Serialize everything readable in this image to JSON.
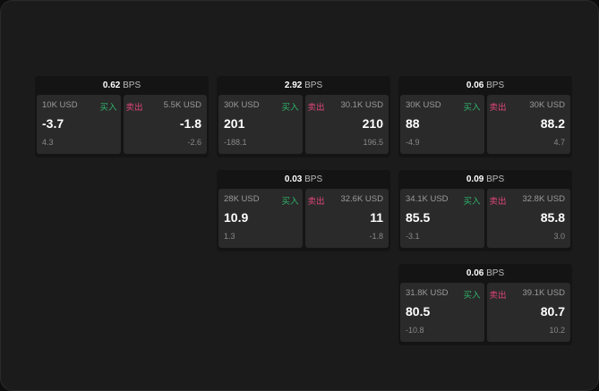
{
  "buy_label": "买入",
  "sell_label": "卖出",
  "unit": "BPS",
  "colors": {
    "buy": "#2fb36a",
    "sell": "#e0457b"
  },
  "cards": [
    {
      "spread": "0.62",
      "buy": {
        "size": "10K USD",
        "price": "-3.7",
        "change": "4.3"
      },
      "sell": {
        "size": "5.5K USD",
        "price": "-1.8",
        "change": "-2.6"
      }
    },
    {
      "spread": "2.92",
      "buy": {
        "size": "30K USD",
        "price": "201",
        "change": "-188.1"
      },
      "sell": {
        "size": "30.1K USD",
        "price": "210",
        "change": "196.5"
      }
    },
    {
      "spread": "0.06",
      "buy": {
        "size": "30K USD",
        "price": "88",
        "change": "-4.9"
      },
      "sell": {
        "size": "30K USD",
        "price": "88.2",
        "change": "4.7"
      }
    },
    {
      "spread": "0.03",
      "buy": {
        "size": "28K USD",
        "price": "10.9",
        "change": "1.3"
      },
      "sell": {
        "size": "32.6K USD",
        "price": "11",
        "change": "-1.8"
      }
    },
    {
      "spread": "0.09",
      "buy": {
        "size": "34.1K USD",
        "price": "85.5",
        "change": "-3.1"
      },
      "sell": {
        "size": "32.8K USD",
        "price": "85.8",
        "change": "3.0"
      }
    },
    {
      "spread": "0.06",
      "buy": {
        "size": "31.8K USD",
        "price": "80.5",
        "change": "-10.8"
      },
      "sell": {
        "size": "39.1K USD",
        "price": "80.7",
        "change": "10.2"
      }
    }
  ]
}
